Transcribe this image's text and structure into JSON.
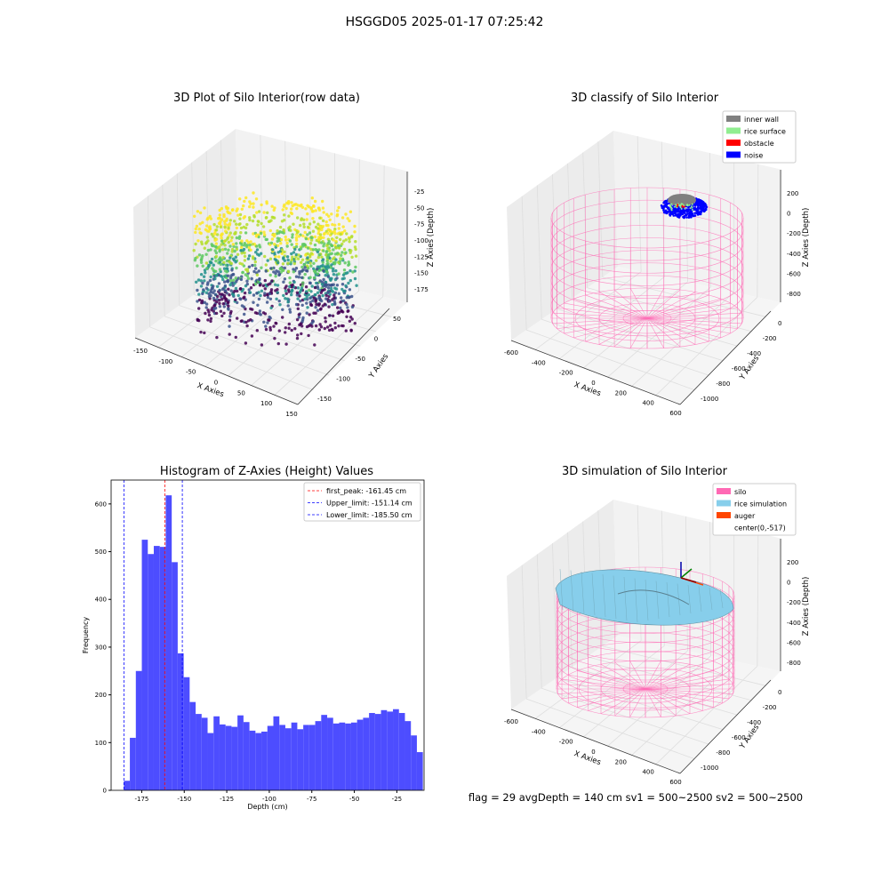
{
  "suptitle": "HSGGD05 2025-01-17 07:25:42",
  "status_line": "flag = 29  avgDepth = 140 cm  sv1 = 500~2500  sv2 = 500~2500",
  "colors": {
    "silo": "#ff69b4",
    "rice": "#87ceeb",
    "auger": "#ff4500",
    "wall": "#808080",
    "rice_surface": "#90ee90",
    "obstacle": "#ff0000",
    "noise": "#0000ff",
    "hist": "#4d4dff"
  },
  "panels": {
    "raw": {
      "title": "3D Plot of Silo Interior(row data)",
      "xlabel": "X Axies",
      "ylabel": "Y Axies",
      "zlabel": "Z Axies (Depth)",
      "xticks": [
        "-150",
        "-100",
        "-50",
        "0",
        "50",
        "100",
        "150"
      ],
      "yticks": [
        "-150",
        "-100",
        "-50",
        "0",
        "50"
      ],
      "zticks": [
        "-25",
        "-50",
        "-75",
        "-100",
        "-125",
        "-150",
        "-175"
      ]
    },
    "classify": {
      "title": "3D classify of Silo Interior",
      "xlabel": "X Axies",
      "ylabel": "Y Axies",
      "zlabel": "Z Axies (Depth)",
      "xticks": [
        "-600",
        "-400",
        "-200",
        "0",
        "200",
        "400",
        "600"
      ],
      "yticks": [
        "-1000",
        "-800",
        "-600",
        "-400",
        "-200",
        "0"
      ],
      "zticks": [
        "200",
        "0",
        "-200",
        "-400",
        "-600",
        "-800"
      ],
      "legend": [
        {
          "label": "inner wall",
          "color": "#808080"
        },
        {
          "label": "rice surface",
          "color": "#90ee90"
        },
        {
          "label": "obstacle",
          "color": "#ff0000"
        },
        {
          "label": "noise",
          "color": "#0000ff"
        }
      ]
    },
    "simulation": {
      "title": "3D simulation of Silo Interior",
      "xlabel": "X Axies",
      "ylabel": "Y Axies",
      "zlabel": "Z Axies (Depth)",
      "xticks": [
        "-600",
        "-400",
        "-200",
        "0",
        "200",
        "400",
        "600"
      ],
      "yticks": [
        "-1000",
        "-800",
        "-600",
        "-400",
        "-200",
        "0"
      ],
      "zticks": [
        "200",
        "0",
        "-200",
        "-400",
        "-600",
        "-800"
      ],
      "legend": [
        {
          "label": "silo",
          "color": "#ff69b4"
        },
        {
          "label": "rice simulation",
          "color": "#87ceeb"
        },
        {
          "label": "auger",
          "color": "#ff4500"
        },
        {
          "label": "center(0,-517)",
          "color": ""
        }
      ]
    }
  },
  "chart_data": {
    "type": "bar",
    "title": "Histogram of Z-Axies (Height) Values",
    "xlabel": "Depth (cm)",
    "ylabel": "Frequency",
    "xlim": [
      -193,
      -9
    ],
    "ylim": [
      0,
      650
    ],
    "xticks": [
      -175,
      -150,
      -125,
      -100,
      -75,
      -50,
      -25
    ],
    "yticks": [
      0,
      100,
      200,
      300,
      400,
      500,
      600
    ],
    "bin_start": -185.5,
    "bin_width": 3.516,
    "values": [
      20,
      110,
      250,
      525,
      495,
      512,
      510,
      618,
      478,
      287,
      237,
      185,
      160,
      152,
      120,
      155,
      138,
      135,
      133,
      157,
      143,
      125,
      120,
      123,
      135,
      155,
      137,
      130,
      142,
      128,
      137,
      137,
      145,
      158,
      152,
      140,
      142,
      140,
      142,
      148,
      152,
      162,
      160,
      168,
      165,
      170,
      162,
      145,
      115,
      80
    ],
    "vlines": [
      {
        "x": -161.45,
        "color": "#ff0000",
        "label": "first_peak: -161.45 cm"
      },
      {
        "x": -151.14,
        "color": "#0000ff",
        "label": "Upper_limit: -151.14 cm"
      },
      {
        "x": -185.5,
        "color": "#0000ff",
        "label": "Lower_limit: -185.50 cm"
      }
    ],
    "legend_position": "upper right",
    "grid": false
  }
}
